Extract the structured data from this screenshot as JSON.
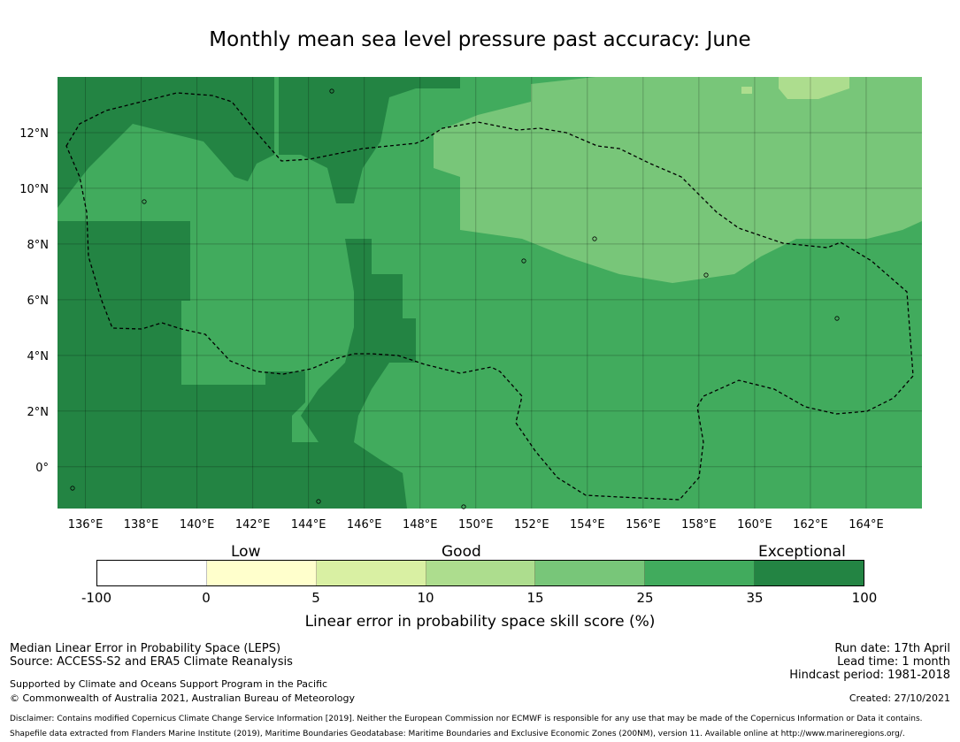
{
  "title": "Monthly mean sea level pressure past accuracy: June",
  "map": {
    "lon_ticks": [
      "136°E",
      "138°E",
      "140°E",
      "142°E",
      "144°E",
      "146°E",
      "148°E",
      "150°E",
      "152°E",
      "154°E",
      "156°E",
      "158°E",
      "160°E",
      "162°E",
      "164°E"
    ],
    "lat_ticks": [
      "12°N",
      "10°N",
      "8°N",
      "6°N",
      "4°N",
      "2°N",
      "0°"
    ],
    "extent": {
      "lon_min": 135.0,
      "lon_max": 166.0,
      "lat_min": -1.5,
      "lat_max": 14.0
    },
    "colors": {
      "exceptional": "#238443",
      "band_25_35": "#41ab5d",
      "band_15_25": "#78c679",
      "band_10_15": "#addd8e",
      "eez_line": "#000000"
    }
  },
  "legend": {
    "category_labels": [
      "Low",
      "Good",
      "Exceptional"
    ],
    "tick_values": [
      "-100",
      "0",
      "5",
      "10",
      "15",
      "25",
      "35",
      "100"
    ],
    "colors": [
      "#ffffff",
      "#ffffcc",
      "#d9f0a3",
      "#addd8e",
      "#78c679",
      "#41ab5d",
      "#238443"
    ],
    "title": "Linear error in probability space skill score (%)"
  },
  "footer": {
    "left1": "Median Linear Error in Probability Space (LEPS)",
    "left2": "Source: ACCESS-S2 and ERA5 Climate Reanalysis",
    "left3": "Supported by Climate and Oceans Support Program in the Pacific",
    "left4": "© Commonwealth of Australia 2021, Australian Bureau of Meteorology",
    "right1": "Run date: 17th April",
    "right2": "Lead time: 1 month",
    "right3": "Hindcast period: 1981-2018",
    "right4": "Created: 27/10/2021",
    "disclaimer1": "Disclaimer: Contains modified Copernicus Climate Change Service Information [2019]. Neither the European Commission nor ECMWF is responsible for any use that may be made of the Copernicus Information or Data it contains.",
    "disclaimer2": "Shapefile data extracted from Flanders Marine Institute (2019), Maritime Boundaries Geodatabase: Maritime Boundaries and Exclusive Economic Zones (200NM), version 11. Available online at http://www.marineregions.org/."
  }
}
